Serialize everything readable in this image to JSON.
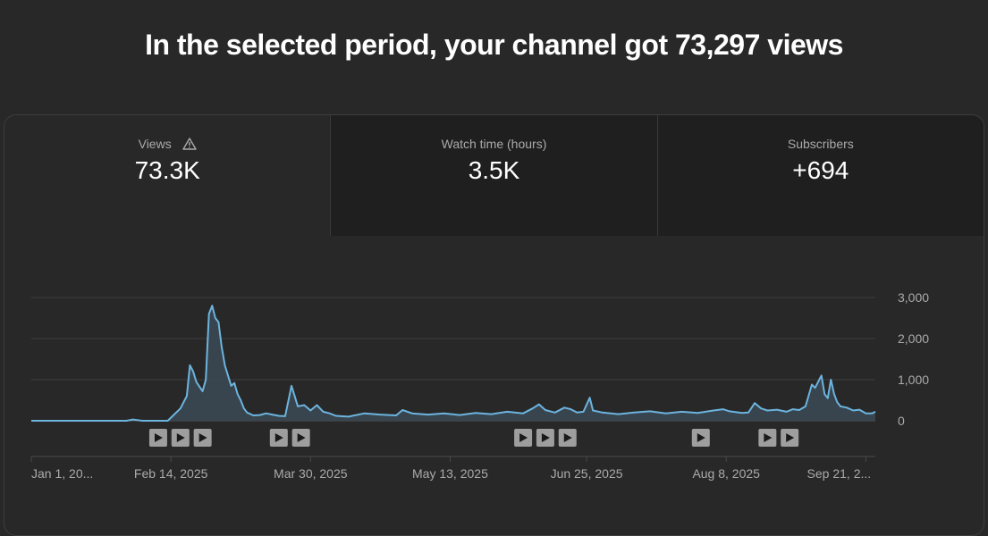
{
  "headline": "In the selected period, your channel got 73,297 views",
  "tabs": [
    {
      "label": "Views",
      "value": "73.3K",
      "icon": "warning-icon",
      "active": true
    },
    {
      "label": "Watch time (hours)",
      "value": "3.5K",
      "active": false
    },
    {
      "label": "Subscribers",
      "value": "+694",
      "active": false
    }
  ],
  "colors": {
    "line": "#6cb4de",
    "area": "#3a4752",
    "grid": "#3e3e3e",
    "marker": "#9e9e9e"
  },
  "chart_data": {
    "type": "area",
    "ylim": [
      0,
      3000
    ],
    "y_ticks": [
      "3,000",
      "2,000",
      "1,000",
      "0"
    ],
    "y_tick_values": [
      3000,
      2000,
      1000,
      0
    ],
    "x_labels": [
      "Jan 1, 20...",
      "Feb 14, 2025",
      "Mar 30, 2025",
      "May 13, 2025",
      "Jun 25, 2025",
      "Aug 8, 2025",
      "Sep 21, 2..."
    ],
    "x_label_days": [
      0,
      44,
      88,
      132,
      175,
      219,
      263
    ],
    "days": 266,
    "video_markers": [
      40,
      47,
      54,
      78,
      85,
      155,
      162,
      169,
      211,
      232,
      239
    ],
    "series": [
      {
        "points": [
          [
            0,
            0
          ],
          [
            20,
            0
          ],
          [
            30,
            0
          ],
          [
            32,
            30
          ],
          [
            35,
            0
          ],
          [
            43,
            0
          ],
          [
            45,
            150
          ],
          [
            47,
            300
          ],
          [
            48,
            450
          ],
          [
            49,
            600
          ],
          [
            50,
            1350
          ],
          [
            51,
            1200
          ],
          [
            52,
            950
          ],
          [
            53,
            830
          ],
          [
            54,
            720
          ],
          [
            55,
            1000
          ],
          [
            56,
            2600
          ],
          [
            57,
            2800
          ],
          [
            58,
            2500
          ],
          [
            59,
            2400
          ],
          [
            60,
            1800
          ],
          [
            61,
            1350
          ],
          [
            62,
            1100
          ],
          [
            63,
            850
          ],
          [
            64,
            920
          ],
          [
            65,
            650
          ],
          [
            66,
            500
          ],
          [
            67,
            300
          ],
          [
            68,
            200
          ],
          [
            70,
            130
          ],
          [
            72,
            140
          ],
          [
            74,
            180
          ],
          [
            76,
            150
          ],
          [
            78,
            120
          ],
          [
            80,
            110
          ],
          [
            82,
            850
          ],
          [
            83,
            600
          ],
          [
            84,
            350
          ],
          [
            86,
            380
          ],
          [
            88,
            250
          ],
          [
            90,
            380
          ],
          [
            92,
            220
          ],
          [
            94,
            180
          ],
          [
            96,
            120
          ],
          [
            100,
            100
          ],
          [
            105,
            180
          ],
          [
            110,
            150
          ],
          [
            115,
            130
          ],
          [
            117,
            260
          ],
          [
            120,
            180
          ],
          [
            125,
            150
          ],
          [
            130,
            180
          ],
          [
            135,
            140
          ],
          [
            140,
            190
          ],
          [
            145,
            160
          ],
          [
            150,
            220
          ],
          [
            155,
            180
          ],
          [
            158,
            300
          ],
          [
            160,
            400
          ],
          [
            162,
            260
          ],
          [
            165,
            200
          ],
          [
            168,
            320
          ],
          [
            170,
            280
          ],
          [
            172,
            200
          ],
          [
            174,
            220
          ],
          [
            176,
            560
          ],
          [
            177,
            250
          ],
          [
            180,
            200
          ],
          [
            185,
            160
          ],
          [
            190,
            200
          ],
          [
            195,
            230
          ],
          [
            200,
            180
          ],
          [
            205,
            220
          ],
          [
            210,
            190
          ],
          [
            215,
            250
          ],
          [
            218,
            280
          ],
          [
            220,
            230
          ],
          [
            224,
            190
          ],
          [
            226,
            200
          ],
          [
            228,
            430
          ],
          [
            230,
            300
          ],
          [
            232,
            250
          ],
          [
            235,
            270
          ],
          [
            238,
            220
          ],
          [
            240,
            280
          ],
          [
            242,
            260
          ],
          [
            244,
            350
          ],
          [
            246,
            880
          ],
          [
            247,
            800
          ],
          [
            248,
            950
          ],
          [
            249,
            1100
          ],
          [
            250,
            650
          ],
          [
            251,
            550
          ],
          [
            252,
            1000
          ],
          [
            253,
            650
          ],
          [
            254,
            450
          ],
          [
            255,
            350
          ],
          [
            257,
            320
          ],
          [
            259,
            250
          ],
          [
            261,
            270
          ],
          [
            263,
            180
          ],
          [
            265,
            180
          ],
          [
            266,
            220
          ]
        ]
      }
    ]
  }
}
